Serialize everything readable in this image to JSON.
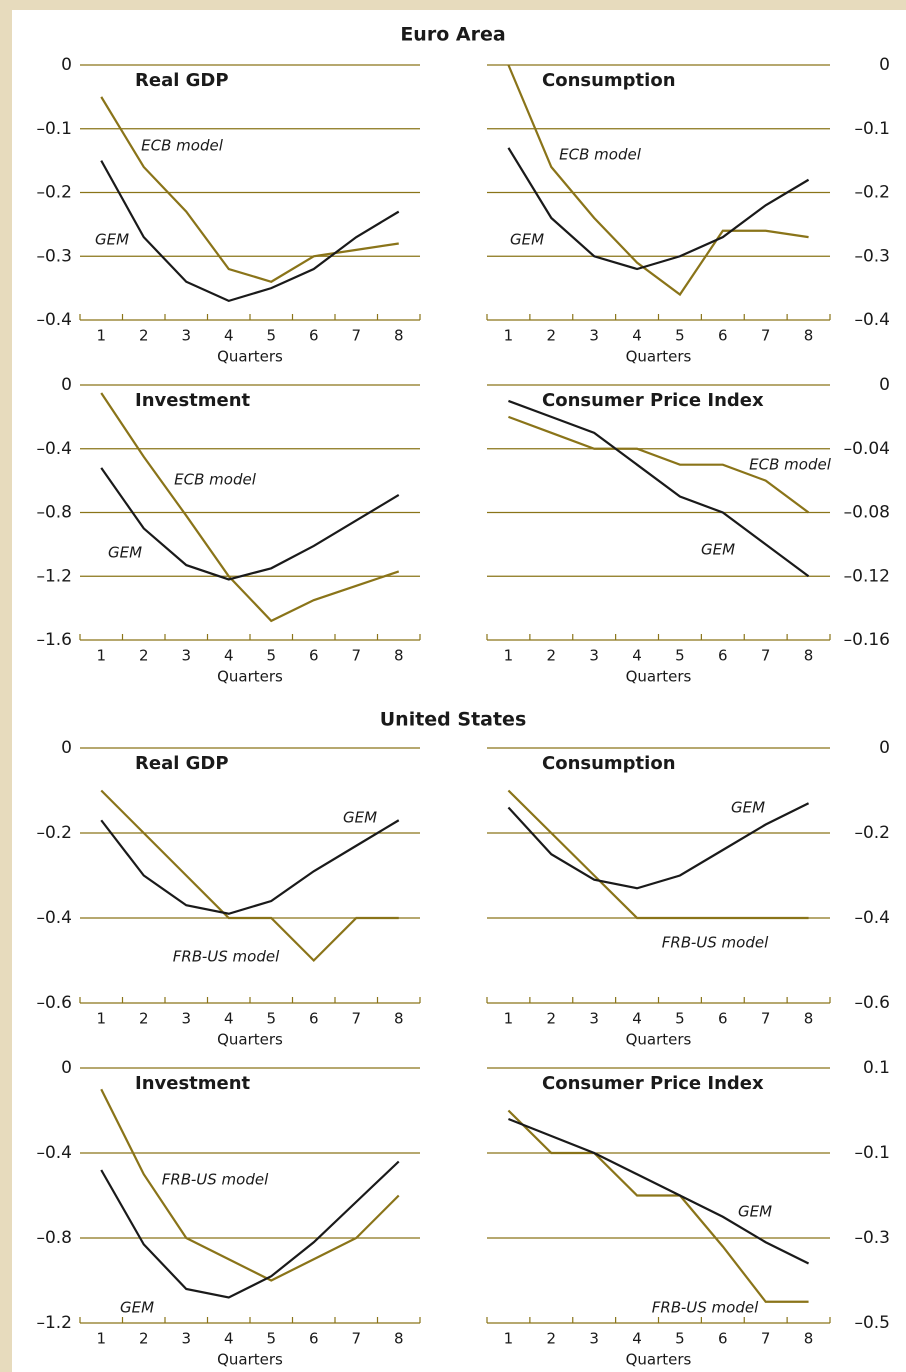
{
  "headings": [
    "Euro Area",
    "United States"
  ],
  "chart_data": [
    {
      "type": "line",
      "title": "Real GDP",
      "x_label": "Quarters",
      "categories": [
        "1",
        "2",
        "3",
        "4",
        "5",
        "6",
        "7",
        "8"
      ],
      "series": [
        {
          "name": "ECB model",
          "color": "#8a7419",
          "values": [
            -0.05,
            -0.16,
            -0.23,
            -0.32,
            -0.34,
            -0.3,
            -0.29,
            -0.28
          ]
        },
        {
          "name": "GEM",
          "color": "#1a1a1a",
          "values": [
            -0.15,
            -0.27,
            -0.34,
            -0.37,
            -0.35,
            -0.32,
            -0.27,
            -0.23
          ]
        }
      ],
      "ylim": [
        -0.4,
        0
      ],
      "yticks": [
        0,
        {
          "value": -0.1,
          "label": "–0.1"
        },
        {
          "value": -0.2,
          "label": "–0.2"
        },
        {
          "value": -0.3,
          "label": "–0.3"
        },
        {
          "value": -0.4,
          "label": "–0.4"
        }
      ],
      "grid": true,
      "yaxis_position": "left"
    },
    {
      "type": "line",
      "title": "Consumption",
      "x_label": "Quarters",
      "categories": [
        "1",
        "2",
        "3",
        "4",
        "5",
        "6",
        "7",
        "8"
      ],
      "series": [
        {
          "name": "ECB model",
          "color": "#8a7419",
          "values": [
            0,
            -0.16,
            -0.24,
            -0.31,
            -0.36,
            -0.26,
            -0.26,
            -0.27
          ]
        },
        {
          "name": "GEM",
          "color": "#1a1a1a",
          "values": [
            -0.13,
            -0.24,
            -0.3,
            -0.32,
            -0.3,
            -0.27,
            -0.22,
            -0.18
          ]
        }
      ],
      "ylim": [
        -0.4,
        0
      ],
      "yticks": [
        0,
        {
          "value": -0.1,
          "label": "–0.1"
        },
        {
          "value": -0.2,
          "label": "–0.2"
        },
        {
          "value": -0.3,
          "label": "–0.3"
        },
        {
          "value": -0.4,
          "label": "–0.4"
        }
      ],
      "grid": true,
      "yaxis_position": "right"
    },
    {
      "type": "line",
      "title": "Investment",
      "x_label": "Quarters",
      "categories": [
        "1",
        "2",
        "3",
        "4",
        "5",
        "6",
        "7",
        "8"
      ],
      "series": [
        {
          "name": "ECB model",
          "color": "#8a7419",
          "values": [
            -0.05,
            -0.45,
            -0.82,
            -1.2,
            -1.48,
            -1.35,
            -1.26,
            -1.17
          ]
        },
        {
          "name": "GEM",
          "color": "#1a1a1a",
          "values": [
            -0.52,
            -0.9,
            -1.13,
            -1.22,
            -1.15,
            -1.01,
            -0.85,
            -0.69
          ]
        }
      ],
      "ylim": [
        -1.6,
        0
      ],
      "yticks": [
        0,
        {
          "value": -0.4,
          "label": "–0.4"
        },
        {
          "value": -0.8,
          "label": "–0.8"
        },
        {
          "value": -1.2,
          "label": "–1.2"
        },
        {
          "value": -1.6,
          "label": "–1.6"
        }
      ],
      "grid": true,
      "yaxis_position": "left"
    },
    {
      "type": "line",
      "title": "Consumer Price Index",
      "x_label": "Quarters",
      "categories": [
        "1",
        "2",
        "3",
        "4",
        "5",
        "6",
        "7",
        "8"
      ],
      "series": [
        {
          "name": "ECB model",
          "color": "#8a7419",
          "values": [
            -0.02,
            -0.03,
            -0.04,
            -0.04,
            -0.05,
            -0.05,
            -0.06,
            -0.08
          ]
        },
        {
          "name": "GEM",
          "color": "#1a1a1a",
          "values": [
            -0.01,
            -0.02,
            -0.03,
            -0.05,
            -0.07,
            -0.08,
            -0.1,
            -0.12
          ]
        }
      ],
      "ylim": [
        -0.16,
        0
      ],
      "yticks": [
        0,
        {
          "value": -0.04,
          "label": "–0.04"
        },
        {
          "value": -0.08,
          "label": "–0.08"
        },
        {
          "value": -0.12,
          "label": "–0.12"
        },
        {
          "value": -0.16,
          "label": "–0.16"
        }
      ],
      "grid": true,
      "yaxis_position": "right"
    },
    {
      "type": "line",
      "title": "Real GDP",
      "x_label": "Quarters",
      "categories": [
        "1",
        "2",
        "3",
        "4",
        "5",
        "6",
        "7",
        "8"
      ],
      "series": [
        {
          "name": "FRB-US model",
          "color": "#8a7419",
          "values": [
            -0.1,
            -0.2,
            -0.3,
            -0.4,
            -0.4,
            -0.5,
            -0.4,
            -0.4
          ]
        },
        {
          "name": "GEM",
          "color": "#1a1a1a",
          "values": [
            -0.17,
            -0.3,
            -0.37,
            -0.39,
            -0.36,
            -0.29,
            -0.23,
            -0.17
          ]
        }
      ],
      "ylim": [
        -0.6,
        0
      ],
      "yticks": [
        0,
        {
          "value": -0.2,
          "label": "–0.2"
        },
        {
          "value": -0.4,
          "label": "–0.4"
        },
        {
          "value": -0.6,
          "label": "–0.6"
        }
      ],
      "grid": true,
      "yaxis_position": "left"
    },
    {
      "type": "line",
      "title": "Consumption",
      "x_label": "Quarters",
      "categories": [
        "1",
        "2",
        "3",
        "4",
        "5",
        "6",
        "7",
        "8"
      ],
      "series": [
        {
          "name": "FRB-US model",
          "color": "#8a7419",
          "values": [
            -0.1,
            -0.2,
            -0.3,
            -0.4,
            -0.4,
            -0.4,
            -0.4,
            -0.4
          ]
        },
        {
          "name": "GEM",
          "color": "#1a1a1a",
          "values": [
            -0.14,
            -0.25,
            -0.31,
            -0.33,
            -0.3,
            -0.24,
            -0.18,
            -0.13
          ]
        }
      ],
      "ylim": [
        -0.6,
        0
      ],
      "yticks": [
        0,
        {
          "value": -0.2,
          "label": "–0.2"
        },
        {
          "value": -0.4,
          "label": "–0.4"
        },
        {
          "value": -0.6,
          "label": "–0.6"
        }
      ],
      "grid": true,
      "yaxis_position": "right"
    },
    {
      "type": "line",
      "title": "Investment",
      "x_label": "Quarters",
      "categories": [
        "1",
        "2",
        "3",
        "4",
        "5",
        "6",
        "7",
        "8"
      ],
      "series": [
        {
          "name": "FRB-US model",
          "color": "#8a7419",
          "values": [
            -0.1,
            -0.5,
            -0.8,
            -0.9,
            -1.0,
            -0.9,
            -0.8,
            -0.6
          ]
        },
        {
          "name": "GEM",
          "color": "#1a1a1a",
          "values": [
            -0.48,
            -0.83,
            -1.04,
            -1.08,
            -0.98,
            -0.82,
            -0.63,
            -0.44
          ]
        }
      ],
      "ylim": [
        -1.2,
        0
      ],
      "yticks": [
        0,
        {
          "value": -0.4,
          "label": "–0.4"
        },
        {
          "value": -0.8,
          "label": "–0.8"
        },
        {
          "value": -1.2,
          "label": "–1.2"
        }
      ],
      "grid": true,
      "yaxis_position": "left"
    },
    {
      "type": "line",
      "title": "Consumer Price Index",
      "x_label": "Quarters",
      "categories": [
        "1",
        "2",
        "3",
        "4",
        "5",
        "6",
        "7",
        "8"
      ],
      "series": [
        {
          "name": "FRB-US model",
          "color": "#8a7419",
          "values": [
            0,
            -0.1,
            -0.1,
            -0.2,
            -0.2,
            -0.32,
            -0.45,
            -0.45
          ]
        },
        {
          "name": "GEM",
          "color": "#1a1a1a",
          "values": [
            -0.02,
            -0.06,
            -0.1,
            -0.15,
            -0.2,
            -0.25,
            -0.31,
            -0.36
          ]
        }
      ],
      "ylim": [
        -0.5,
        0.1
      ],
      "yticks": [
        0.1,
        {
          "value": -0.1,
          "label": "–0.1"
        },
        {
          "value": -0.3,
          "label": "–0.3"
        },
        {
          "value": -0.5,
          "label": "–0.5"
        }
      ],
      "grid": true,
      "yaxis_position": "right"
    }
  ]
}
